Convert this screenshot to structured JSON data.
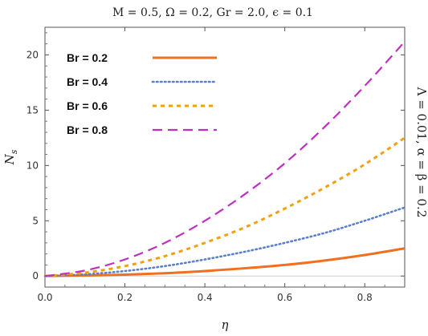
{
  "chart_data": {
    "type": "line",
    "title": "M = 0.5, Ω = 0.2, Gr = 2.0, ϵ = 0.1",
    "side_label": "Λ = 0.01,  α = β = 0.2",
    "xlabel": "η",
    "ylabel": "Ns",
    "xlim": [
      0,
      0.9
    ],
    "ylim": [
      -1,
      22.5
    ],
    "xticks": [
      0.0,
      0.2,
      0.4,
      0.6,
      0.8
    ],
    "xtick_labels": [
      "0.0",
      "0.2",
      "0.4",
      "0.6",
      "0.8"
    ],
    "yticks": [
      0,
      5,
      10,
      15,
      20
    ],
    "ytick_labels": [
      "0",
      "5",
      "10",
      "15",
      "20"
    ],
    "grid": false,
    "legend_placement": "top-left",
    "x": [
      0.0,
      0.1,
      0.2,
      0.3,
      0.4,
      0.5,
      0.6,
      0.7,
      0.8,
      0.9
    ],
    "series": [
      {
        "name": "Br = 0.2",
        "color": "#f07020",
        "dash": "solid",
        "values": [
          0.0,
          0.05,
          0.12,
          0.25,
          0.45,
          0.7,
          1.0,
          1.4,
          1.9,
          2.5
        ]
      },
      {
        "name": "Br = 0.4",
        "color": "#5a7fd0",
        "dash": "dotted",
        "values": [
          0.0,
          0.15,
          0.45,
          0.9,
          1.5,
          2.2,
          3.0,
          3.9,
          5.0,
          6.2
        ]
      },
      {
        "name": "Br = 0.6",
        "color": "#f0a010",
        "dash": "short-dash",
        "values": [
          0.0,
          0.3,
          0.9,
          1.8,
          3.0,
          4.4,
          6.1,
          8.0,
          10.1,
          12.5
        ]
      },
      {
        "name": "Br = 0.8",
        "color": "#c030c0",
        "dash": "long-dash",
        "values": [
          0.0,
          0.5,
          1.5,
          3.0,
          5.0,
          7.4,
          10.2,
          13.5,
          17.2,
          21.2
        ]
      }
    ]
  }
}
